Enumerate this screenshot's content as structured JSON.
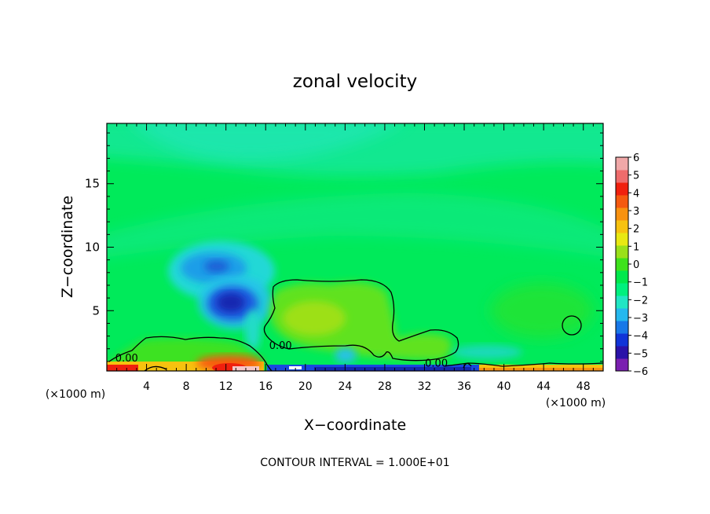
{
  "chart_data": {
    "type": "heatmap",
    "title": "zonal velocity",
    "xlabel": "X−coordinate",
    "ylabel": "Z−coordinate",
    "x_units_left": "(×1000 m)",
    "x_units_right": "(×1000 m)",
    "x_ticks": [
      4,
      8,
      12,
      16,
      20,
      24,
      28,
      32,
      36,
      40,
      44,
      48
    ],
    "y_ticks": [
      5,
      10,
      15
    ],
    "xlim": [
      0,
      50
    ],
    "ylim": [
      0.25,
      19.75
    ],
    "footer": "CONTOUR INTERVAL = 1.000E+01",
    "contour_label": "0.00",
    "contour_labels": [
      {
        "text": "0.00",
        "x": 2.0,
        "y": 1.3
      },
      {
        "text": "0.00",
        "x": 17.5,
        "y": 2.3
      },
      {
        "text": "0.00",
        "x": 33.2,
        "y": 0.9
      }
    ],
    "colorbar": {
      "min": -6,
      "max": 6,
      "tick_labels": [
        "6",
        "5",
        "4",
        "3",
        "2",
        "1",
        "0",
        "−1",
        "−2",
        "−3",
        "−4",
        "−5",
        "−6"
      ],
      "colors": [
        "#7a1fb0",
        "#2a12a8",
        "#1034d8",
        "#1878e8",
        "#25b8ee",
        "#21e6c4",
        "#00f07e",
        "#00e84c",
        "#3ee21c",
        "#9ae01a",
        "#e8e812",
        "#f7c20f",
        "#f89210",
        "#f55a10",
        "#f0200e",
        "#ee6c6c",
        "#f0a8a8"
      ]
    },
    "features": [
      {
        "kind": "background",
        "value": -0.3
      },
      {
        "kind": "blob",
        "x": 13,
        "y": 6.3,
        "sx": 2.4,
        "sy": 1.6,
        "value": -4.5
      },
      {
        "kind": "blob",
        "x": 12,
        "y": 8.6,
        "sx": 3.0,
        "sy": 1.3,
        "value": -2.5
      },
      {
        "kind": "blob",
        "x": 12,
        "y": 0.8,
        "sx": 3.5,
        "sy": 0.5,
        "value": 3.8
      },
      {
        "kind": "blob",
        "x": 22,
        "y": 4.0,
        "sx": 5.0,
        "sy": 2.5,
        "value": 1.5
      },
      {
        "kind": "blob",
        "x": 28,
        "y": 0.5,
        "sx": 6.0,
        "sy": 0.25,
        "value": -4.5
      },
      {
        "kind": "blob",
        "x": 46,
        "y": 4.0,
        "sx": 3.0,
        "sy": 2.0,
        "value": 0.8
      }
    ]
  }
}
